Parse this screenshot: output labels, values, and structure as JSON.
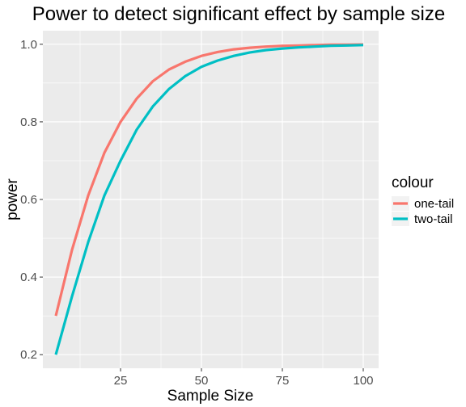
{
  "chart_data": {
    "type": "line",
    "title": "Power to detect significant effect by sample size",
    "xlabel": "Sample Size",
    "ylabel": "power",
    "xlim": [
      1,
      104.75
    ],
    "ylim": [
      0.165,
      1.035
    ],
    "x_ticks": [
      25,
      50,
      75,
      100
    ],
    "y_ticks": [
      0.2,
      0.4,
      0.6,
      0.8,
      1.0
    ],
    "x_tick_labels": [
      "25",
      "50",
      "75",
      "100"
    ],
    "y_tick_labels": [
      "0.2",
      "0.4",
      "0.6",
      "0.8",
      "1.0"
    ],
    "grid": true,
    "legend": {
      "title": "colour",
      "position": "right"
    },
    "x": [
      5,
      10,
      15,
      20,
      25,
      30,
      35,
      40,
      45,
      50,
      55,
      60,
      65,
      70,
      75,
      80,
      85,
      90,
      95,
      100
    ],
    "series": [
      {
        "name": "one-tail",
        "color": "#F8766D",
        "values": [
          0.3,
          0.47,
          0.61,
          0.72,
          0.8,
          0.86,
          0.905,
          0.935,
          0.955,
          0.97,
          0.98,
          0.987,
          0.991,
          0.994,
          0.996,
          0.997,
          0.998,
          0.999,
          0.999,
          0.9995
        ]
      },
      {
        "name": "two-tail",
        "color": "#00BFC4",
        "values": [
          0.2,
          0.35,
          0.49,
          0.61,
          0.7,
          0.78,
          0.84,
          0.885,
          0.918,
          0.942,
          0.958,
          0.97,
          0.979,
          0.985,
          0.989,
          0.992,
          0.994,
          0.996,
          0.997,
          0.998
        ]
      }
    ]
  }
}
